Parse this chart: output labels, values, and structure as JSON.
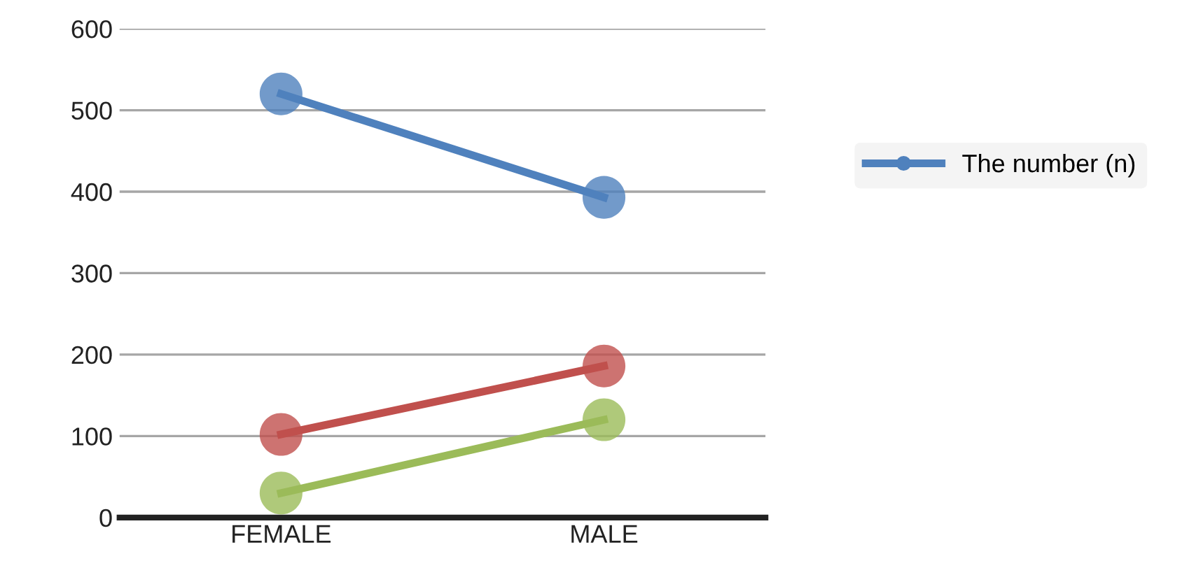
{
  "chart_data": {
    "type": "line",
    "categories": [
      "FEMALE",
      "MALE"
    ],
    "series": [
      {
        "name": "The number (n)",
        "color": "#4f81bd",
        "values": [
          520,
          393
        ]
      },
      {
        "color": "#c0504d",
        "values": [
          102,
          186
        ]
      },
      {
        "color": "#9bbb59",
        "values": [
          30,
          120
        ]
      }
    ],
    "ylim": [
      0,
      600
    ],
    "yticks": [
      0,
      100,
      200,
      300,
      400,
      500,
      600
    ],
    "grid": "y",
    "legend": "right",
    "marker": "circle",
    "line_style": "solid"
  }
}
